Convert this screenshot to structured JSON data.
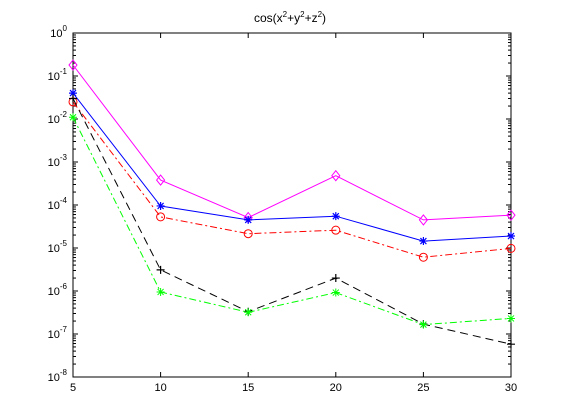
{
  "chart_data": {
    "type": "line",
    "title": {
      "base": "cos(x",
      "sup1": "2",
      "mid1": "+y",
      "sup2": "2",
      "mid2": "+z",
      "sup3": "2",
      "end": ")"
    },
    "xlabel": "",
    "ylabel": "",
    "xlim": [
      5,
      30
    ],
    "ylim": [
      1e-08,
      1
    ],
    "yscale": "log",
    "grid": false,
    "x_ticks": [
      "5",
      "10",
      "15",
      "20",
      "25",
      "30"
    ],
    "y_ticks": [
      {
        "base": "10",
        "exp": "0"
      },
      {
        "base": "10",
        "exp": "-1"
      },
      {
        "base": "10",
        "exp": "-2"
      },
      {
        "base": "10",
        "exp": "-3"
      },
      {
        "base": "10",
        "exp": "-4"
      },
      {
        "base": "10",
        "exp": "-5"
      },
      {
        "base": "10",
        "exp": "-6"
      },
      {
        "base": "10",
        "exp": "-7"
      },
      {
        "base": "10",
        "exp": "-8"
      }
    ],
    "x": [
      5,
      10,
      15,
      20,
      25,
      30
    ],
    "series": [
      {
        "color": "#ff00ff",
        "dash": "solid",
        "marker": "diamond",
        "values": [
          0.18,
          0.00038,
          5.1e-05,
          0.00048,
          4.5e-05,
          5.8e-05
        ]
      },
      {
        "color": "#0000ff",
        "dash": "solid",
        "marker": "asterisk",
        "values": [
          0.04,
          9.5e-05,
          4.5e-05,
          5.5e-05,
          1.45e-05,
          1.9e-05
        ]
      },
      {
        "color": "#ff0000",
        "dash": "dashdot",
        "marker": "circle",
        "values": [
          0.025,
          5.3e-05,
          2.15e-05,
          2.6e-05,
          6.1e-06,
          9.8e-06
        ]
      },
      {
        "color": "#000000",
        "dash": "dashed",
        "marker": "plus",
        "values": [
          0.03,
          3.1e-06,
          3.3e-07,
          2e-06,
          1.7e-07,
          5.8e-08
        ]
      },
      {
        "color": "#00ff00",
        "dash": "dashdot",
        "marker": "star",
        "values": [
          0.011,
          9.5e-07,
          3.2e-07,
          9.2e-07,
          1.65e-07,
          2.3e-07
        ]
      }
    ]
  }
}
